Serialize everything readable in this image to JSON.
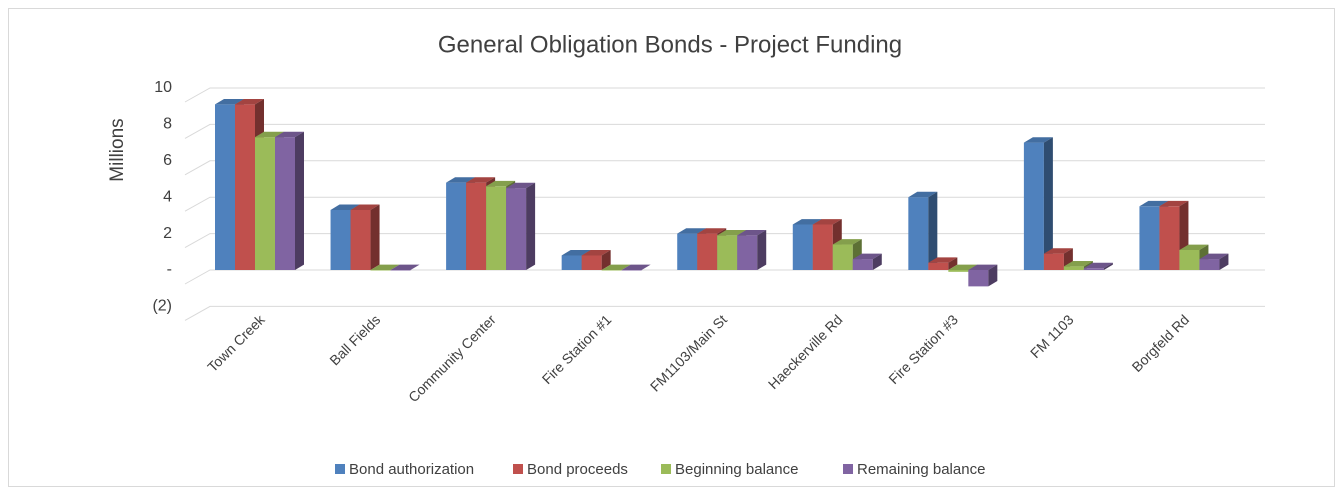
{
  "chart_data": {
    "type": "bar3d",
    "title": "General Obligation Bonds - Project Funding",
    "y_label": "Millions",
    "categories": [
      "Town Creek",
      "Ball Fields",
      "Community Center",
      "Fire Station #1",
      "FM1103/Main St",
      "Haeckerville Rd",
      "Fire Station #3",
      "FM 1103",
      "Borgfeld Rd"
    ],
    "series": [
      {
        "name": "Bond authorization",
        "color": "#4f81bd",
        "values": [
          9.1,
          3.3,
          4.8,
          0.8,
          2.0,
          2.5,
          4.0,
          7.0,
          3.5
        ]
      },
      {
        "name": "Bond proceeds",
        "color": "#c0504d",
        "values": [
          9.1,
          3.3,
          4.8,
          0.8,
          2.0,
          2.5,
          0.4,
          0.9,
          3.5
        ]
      },
      {
        "name": "Beginning balance",
        "color": "#9bbb59",
        "values": [
          7.3,
          0,
          4.6,
          0,
          1.9,
          1.4,
          -0.1,
          0.2,
          1.1
        ]
      },
      {
        "name": "Remaining balance",
        "color": "#8064a2",
        "values": [
          7.3,
          0,
          4.5,
          0,
          1.9,
          0.6,
          -0.9,
          0.1,
          0.6
        ]
      }
    ],
    "ylim": [
      -2,
      10
    ],
    "yticks": [
      {
        "value": -2,
        "label": "(2)"
      },
      {
        "value": 0,
        "label": "-"
      },
      2,
      4,
      6,
      8,
      10
    ],
    "grid": true,
    "legend": "bottom"
  }
}
